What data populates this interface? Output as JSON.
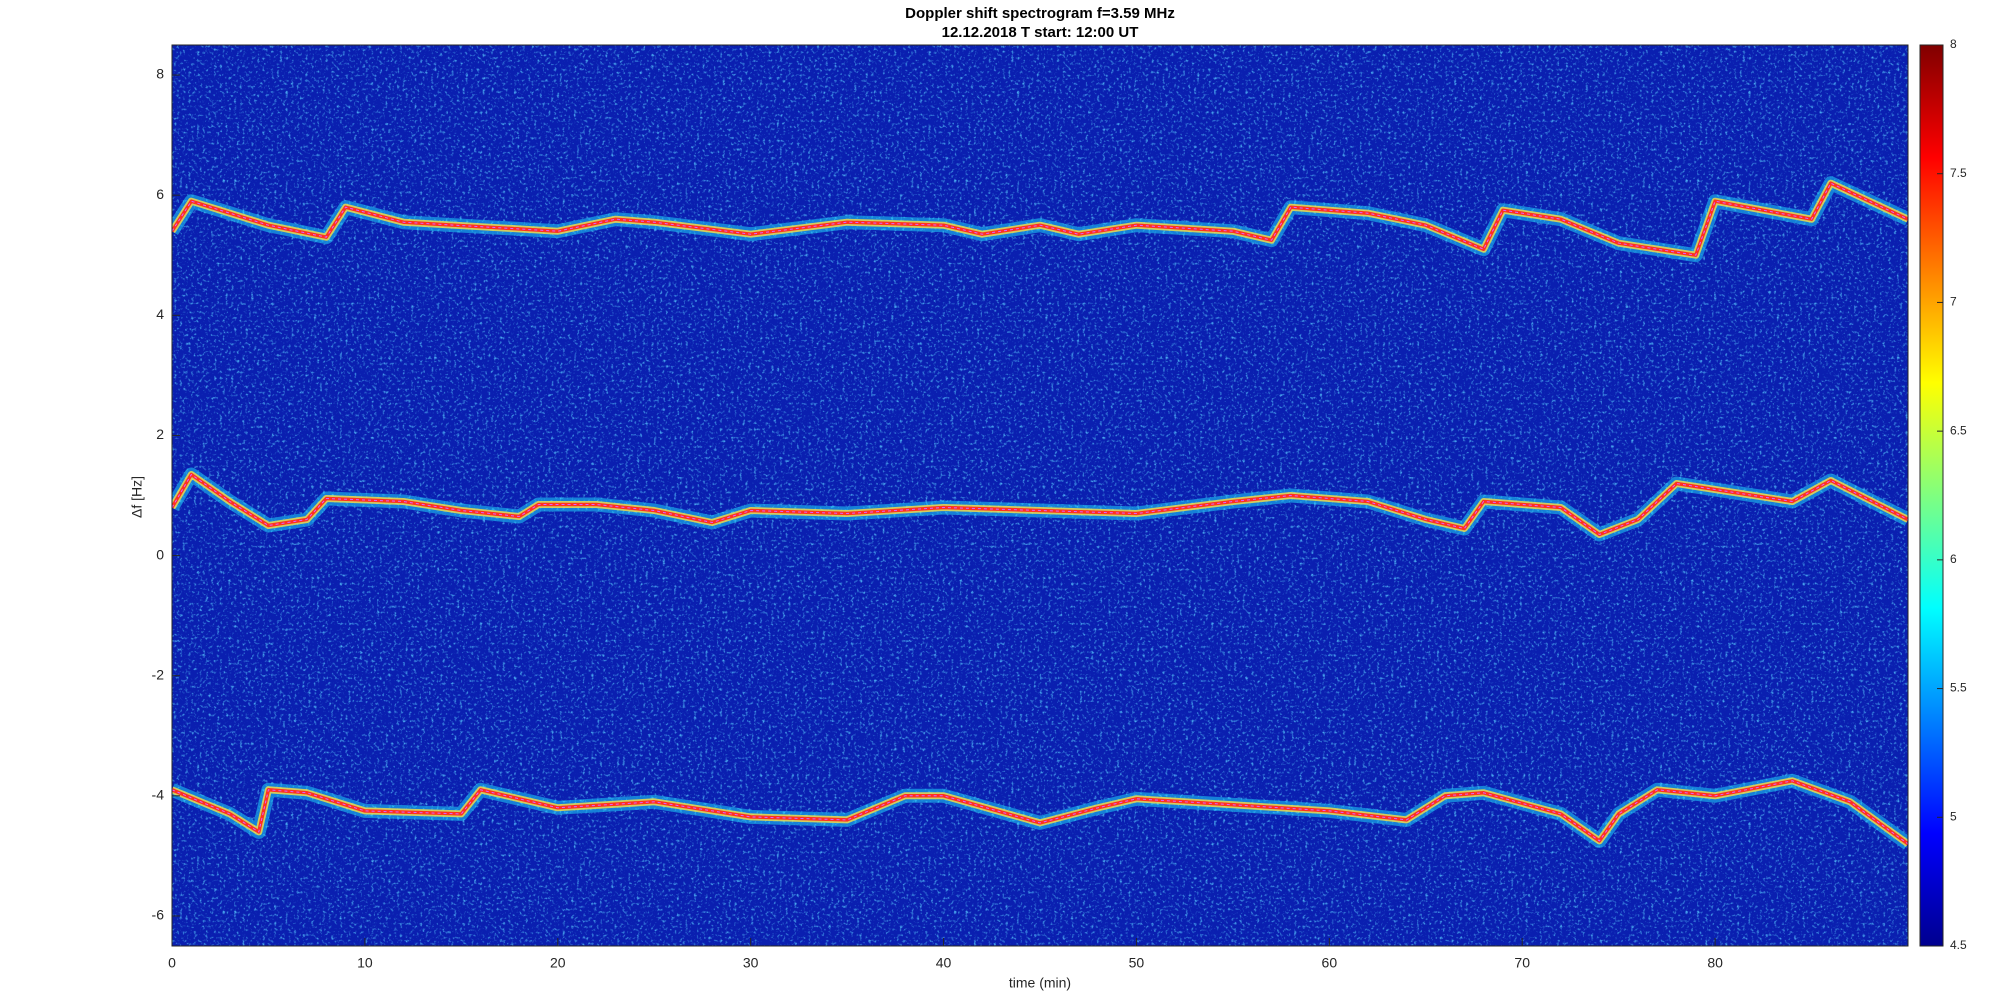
{
  "chart_data": {
    "type": "spectrogram",
    "title": "Doppler shift spectrogram f=3.59 MHz",
    "subtitle": "12.12.2018   T start: 12:00 UT",
    "x_label": "time (min)",
    "y_label": "Δf [Hz]",
    "xlim": [
      0,
      90
    ],
    "xticks": [
      0,
      10,
      20,
      30,
      40,
      50,
      60,
      70,
      80
    ],
    "ylim": [
      -6.5,
      8.5
    ],
    "yticks": [
      -6,
      -4,
      -2,
      0,
      2,
      4,
      6,
      8
    ],
    "clim": [
      4.5,
      8
    ],
    "cticks": [
      4.5,
      5,
      5.5,
      6,
      6.5,
      7,
      7.5,
      8
    ],
    "series": [
      {
        "color": "#ff3020",
        "x": [
          0,
          1,
          5,
          8,
          9,
          12,
          20,
          23,
          25,
          30,
          35,
          40,
          42,
          45,
          47,
          50,
          55,
          57,
          58,
          62,
          65,
          68,
          69,
          72,
          75,
          79,
          80,
          85,
          86,
          90
        ],
        "values": [
          5.4,
          5.9,
          5.5,
          5.3,
          5.8,
          5.55,
          5.4,
          5.6,
          5.55,
          5.35,
          5.55,
          5.5,
          5.35,
          5.5,
          5.35,
          5.5,
          5.4,
          5.25,
          5.8,
          5.7,
          5.5,
          5.1,
          5.75,
          5.6,
          5.2,
          5.0,
          5.9,
          5.6,
          6.2,
          5.6
        ]
      },
      {
        "color": "#ff3020",
        "x": [
          0,
          1,
          3,
          5,
          7,
          8,
          12,
          15,
          18,
          19,
          22,
          25,
          28,
          30,
          35,
          40,
          45,
          50,
          55,
          58,
          62,
          65,
          67,
          68,
          72,
          74,
          76,
          78,
          82,
          84,
          86,
          90
        ],
        "values": [
          0.8,
          1.35,
          0.9,
          0.5,
          0.6,
          0.95,
          0.9,
          0.75,
          0.65,
          0.85,
          0.85,
          0.75,
          0.55,
          0.75,
          0.7,
          0.8,
          0.75,
          0.7,
          0.9,
          1.0,
          0.9,
          0.6,
          0.45,
          0.9,
          0.8,
          0.35,
          0.6,
          1.2,
          1.0,
          0.9,
          1.25,
          0.6
        ]
      },
      {
        "color": "#ff3020",
        "x": [
          0,
          3,
          4.5,
          5,
          7,
          10,
          15,
          16,
          20,
          25,
          30,
          35,
          38,
          40,
          45,
          48,
          50,
          55,
          60,
          64,
          66,
          68,
          72,
          74,
          75,
          77,
          80,
          84,
          87,
          90
        ],
        "values": [
          -3.9,
          -4.3,
          -4.6,
          -3.9,
          -3.95,
          -4.25,
          -4.3,
          -3.9,
          -4.2,
          -4.1,
          -4.35,
          -4.4,
          -4.0,
          -4.0,
          -4.45,
          -4.2,
          -4.05,
          -4.15,
          -4.25,
          -4.4,
          -4.0,
          -3.95,
          -4.3,
          -4.75,
          -4.3,
          -3.9,
          -4.0,
          -3.75,
          -4.1,
          -4.8
        ]
      }
    ]
  }
}
